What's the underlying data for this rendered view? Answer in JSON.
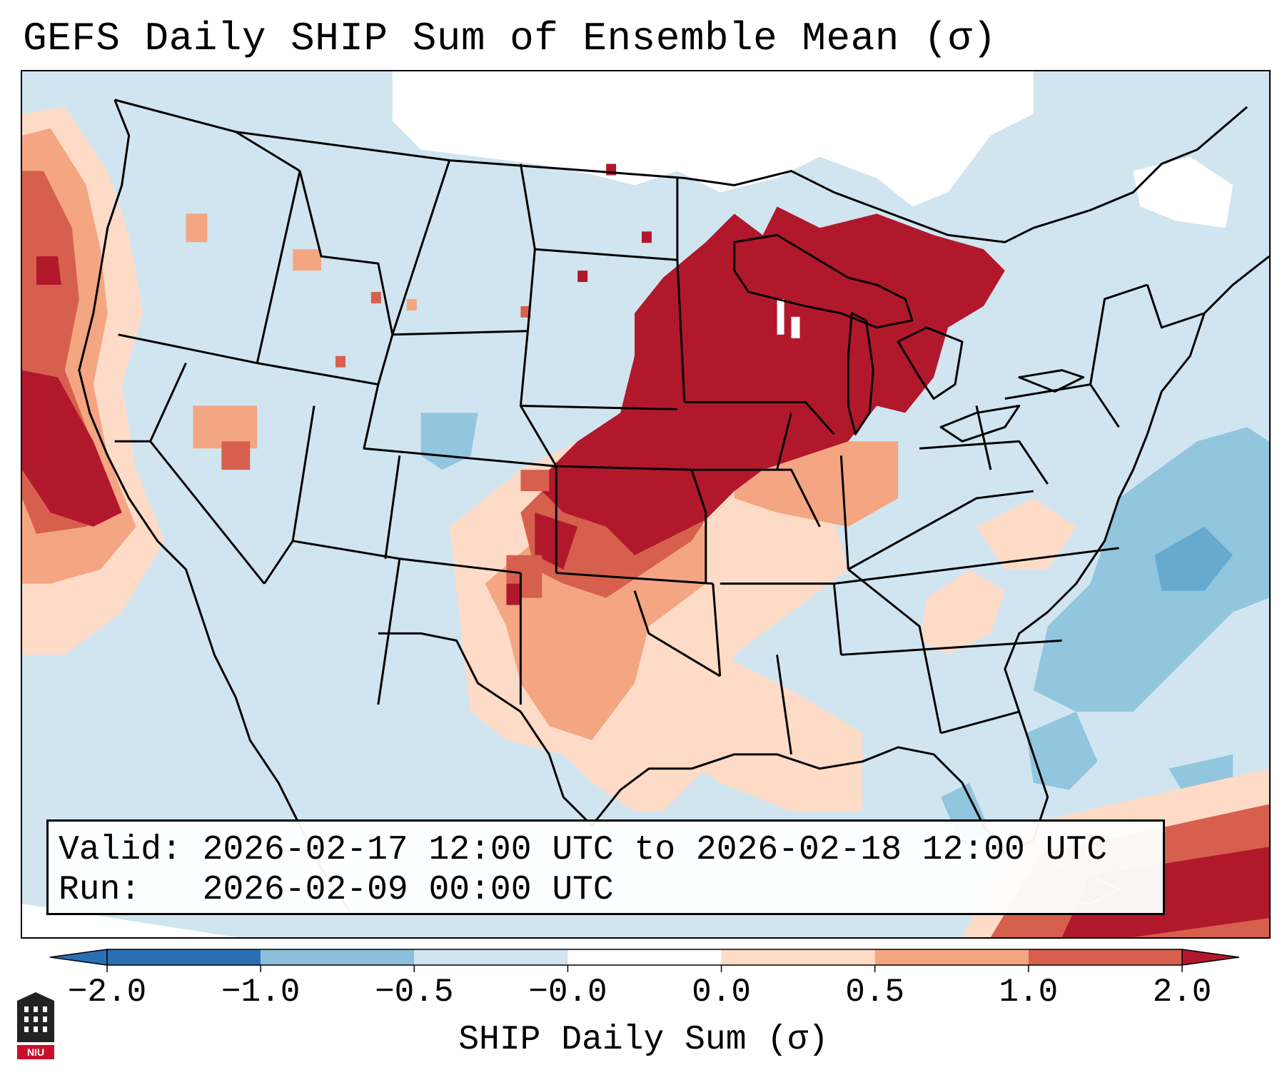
{
  "title": "GEFS Daily SHIP Sum of Ensemble Mean (σ)",
  "info": {
    "valid_label": "Valid:",
    "valid_value": "2026-02-17 12:00 UTC to 2026-02-18 12:00 UTC",
    "run_label": "Run:",
    "run_value": "2026-02-09 00:00 UTC"
  },
  "colorbar": {
    "label": "SHIP Daily Sum (σ)",
    "ticks": [
      "−2.0",
      "−1.0",
      "−0.5",
      "−0.0",
      "0.0",
      "0.5",
      "1.0",
      "2.0"
    ],
    "colors": [
      "#2b6fb3",
      "#8bbfdb",
      "#d1e5f0",
      "#ffffff",
      "#fddbc7",
      "#f4a582",
      "#d6604d",
      "#b2182b"
    ],
    "extend": "both"
  },
  "logo": {
    "text": "NIU"
  },
  "map": {
    "region": "CONUS",
    "colors": {
      "neg_strong": "#4393c3",
      "neg_mid": "#92c5de",
      "neg_light": "#d1e5f0",
      "pos_light": "#fddbc7",
      "pos_mid": "#f4a582",
      "pos_strong": "#d6604d",
      "pos_max": "#b2182b"
    }
  }
}
